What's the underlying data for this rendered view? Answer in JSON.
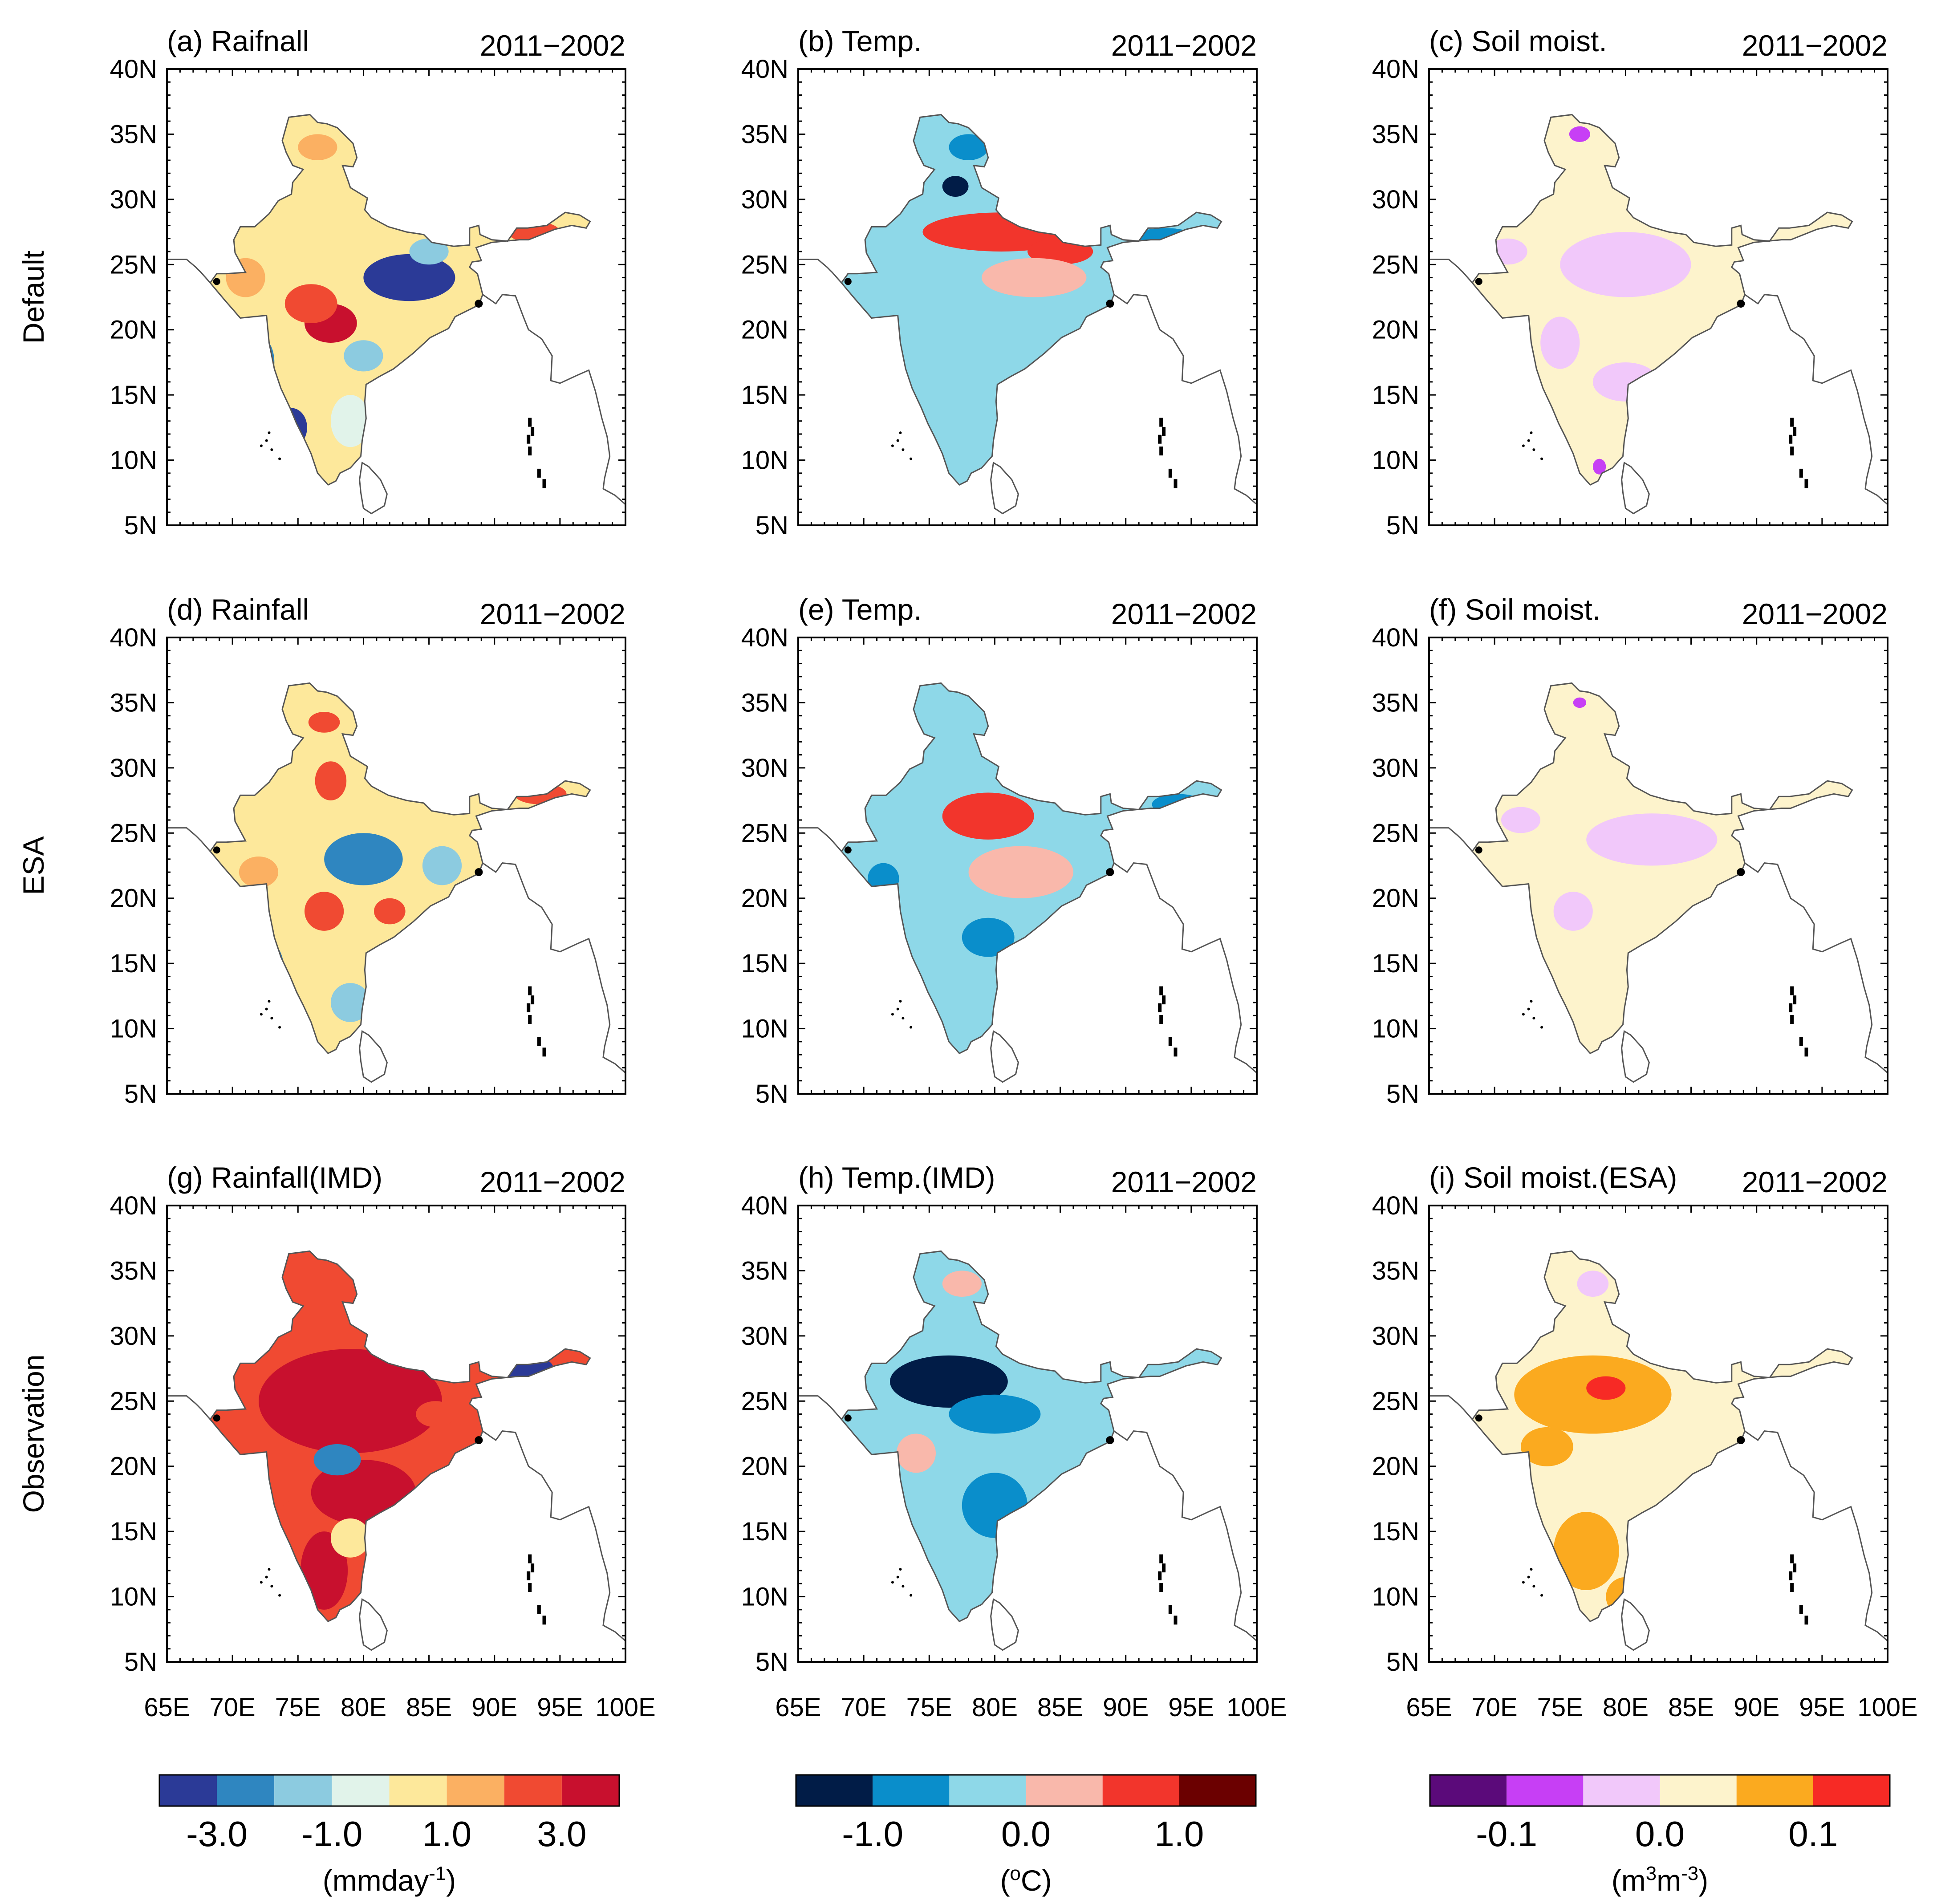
{
  "figure": {
    "panels": [
      {
        "id": "a",
        "title": "(a) Raifnall",
        "period": "2011−2002",
        "variable": "rain",
        "palette": [
          "#2b3a97",
          "#2f86c0",
          "#8ccbe0",
          "#e1f3ea",
          "#fde89b",
          "#fbb062",
          "#f04a32",
          "#c8102e"
        ]
      },
      {
        "id": "b",
        "title": "(b) Temp.",
        "period": "2011−2002",
        "variable": "temp",
        "palette": [
          "#011c47",
          "#0a8ecb",
          "#8ed8e8",
          "#f9b8ab",
          "#f2352c",
          "#6b0000"
        ]
      },
      {
        "id": "c",
        "title": "(c) Soil moist.",
        "period": "2011−2002",
        "variable": "soil",
        "palette": [
          "#5b0a7a",
          "#c73ff5",
          "#f1c8fa",
          "#fdf3cc",
          "#fbaa1f",
          "#f72a25"
        ]
      },
      {
        "id": "d",
        "title": "(d) Rainfall",
        "period": "2011−2002",
        "variable": "rain",
        "palette": [
          "#2b3a97",
          "#2f86c0",
          "#8ccbe0",
          "#e1f3ea",
          "#fde89b",
          "#fbb062",
          "#f04a32",
          "#c8102e"
        ]
      },
      {
        "id": "e",
        "title": "(e) Temp.",
        "period": "2011−2002",
        "variable": "temp",
        "palette": [
          "#011c47",
          "#0a8ecb",
          "#8ed8e8",
          "#f9b8ab",
          "#f2352c",
          "#6b0000"
        ]
      },
      {
        "id": "f",
        "title": "(f) Soil moist.",
        "period": "2011−2002",
        "variable": "soil",
        "palette": [
          "#5b0a7a",
          "#c73ff5",
          "#f1c8fa",
          "#fdf3cc",
          "#fbaa1f",
          "#f72a25"
        ]
      },
      {
        "id": "g",
        "title": "(g) Rainfall(IMD)",
        "period": "2011−2002",
        "variable": "rain",
        "palette": [
          "#2b3a97",
          "#2f86c0",
          "#8ccbe0",
          "#e1f3ea",
          "#fde89b",
          "#fbb062",
          "#f04a32",
          "#c8102e"
        ]
      },
      {
        "id": "h",
        "title": "(h) Temp.(IMD)",
        "period": "2011−2002",
        "variable": "temp",
        "palette": [
          "#011c47",
          "#0a8ecb",
          "#8ed8e8",
          "#f9b8ab",
          "#f2352c",
          "#6b0000"
        ]
      },
      {
        "id": "i",
        "title": "(i) Soil moist.(ESA)",
        "period": "2011−2002",
        "variable": "soil",
        "palette": [
          "#5b0a7a",
          "#c73ff5",
          "#f1c8fa",
          "#fdf3cc",
          "#fbaa1f",
          "#f72a25"
        ]
      }
    ],
    "row_labels": [
      "Default",
      "ESA",
      "Observation"
    ],
    "lat_ticks": [
      "40N",
      "35N",
      "30N",
      "25N",
      "20N",
      "15N",
      "10N",
      "5N"
    ],
    "lon_ticks": [
      "65E",
      "70E",
      "75E",
      "80E",
      "85E",
      "90E",
      "95E",
      "100E"
    ],
    "extent": {
      "lon": [
        65,
        100
      ],
      "lat": [
        5,
        40
      ]
    },
    "colorbars": [
      {
        "id": "rain",
        "colors": [
          "#2b3a97",
          "#2f86c0",
          "#8ccbe0",
          "#e1f3ea",
          "#fde89b",
          "#fbb062",
          "#f04a32",
          "#c8102e"
        ],
        "labels": [
          "-3.0",
          "-1.0",
          "1.0",
          "3.0"
        ],
        "unit_parts": [
          "(mmday",
          "-1",
          ")"
        ]
      },
      {
        "id": "temp",
        "colors": [
          "#011c47",
          "#0a8ecb",
          "#8ed8e8",
          "#f9b8ab",
          "#f2352c",
          "#6b0000"
        ],
        "labels": [
          "-1.0",
          "0.0",
          "1.0"
        ],
        "unit_parts": [
          "(",
          "o",
          "C)"
        ]
      },
      {
        "id": "soil",
        "colors": [
          "#5b0a7a",
          "#c73ff5",
          "#f1c8fa",
          "#fdf3cc",
          "#fbaa1f",
          "#f72a25"
        ],
        "labels": [
          "-0.1",
          "0.0",
          "0.1"
        ],
        "unit_parts": [
          "(m",
          "3",
          "m",
          "-3",
          ")"
        ]
      }
    ]
  }
}
